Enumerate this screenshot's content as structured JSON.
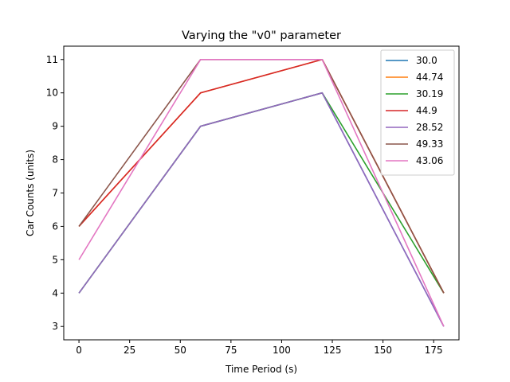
{
  "chart_data": {
    "type": "line",
    "title": "Varying the \"v0\" parameter",
    "xlabel": "Time Period (s)",
    "ylabel": "Car Counts (units)",
    "xlim": [
      -7.5,
      187.5
    ],
    "ylim": [
      2.6,
      11.4
    ],
    "xticks": [
      0,
      25,
      50,
      75,
      100,
      125,
      150,
      175
    ],
    "yticks": [
      3,
      4,
      5,
      6,
      7,
      8,
      9,
      10,
      11
    ],
    "grid": false,
    "legend_position": "top-right",
    "x": [
      0,
      60,
      120,
      180
    ],
    "series": [
      {
        "name": "30.0",
        "color": "#1f77b4",
        "values": [
          4,
          9,
          10,
          3
        ]
      },
      {
        "name": "44.74",
        "color": "#ff7f0e",
        "values": [
          6,
          10,
          11,
          4
        ]
      },
      {
        "name": "30.19",
        "color": "#2ca02c",
        "values": [
          4,
          9,
          10,
          4
        ]
      },
      {
        "name": "44.9",
        "color": "#d62728",
        "values": [
          6,
          10,
          11,
          4
        ]
      },
      {
        "name": "28.52",
        "color": "#9467bd",
        "values": [
          4,
          9,
          10,
          3
        ]
      },
      {
        "name": "49.33",
        "color": "#8c564b",
        "values": [
          6,
          11,
          11,
          4
        ]
      },
      {
        "name": "43.06",
        "color": "#e377c2",
        "values": [
          5,
          11,
          11,
          3
        ]
      }
    ]
  }
}
